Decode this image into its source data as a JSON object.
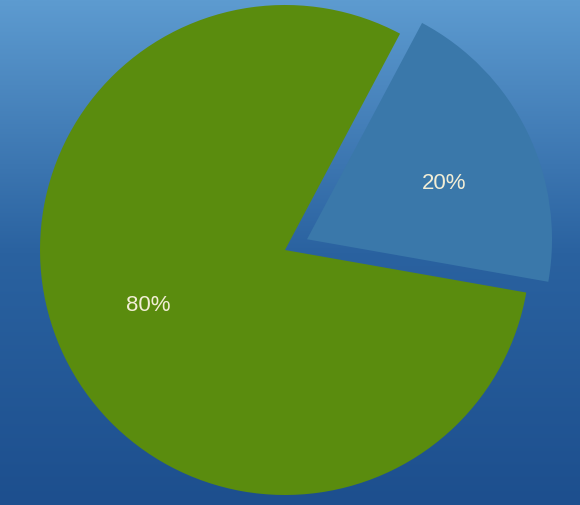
{
  "chart_data": {
    "type": "pie",
    "values": [
      20,
      80
    ],
    "value_labels": [
      "20%",
      "80%"
    ],
    "colors": [
      "#3a78aa",
      "#5a8c0e"
    ],
    "data_labels": true
  }
}
